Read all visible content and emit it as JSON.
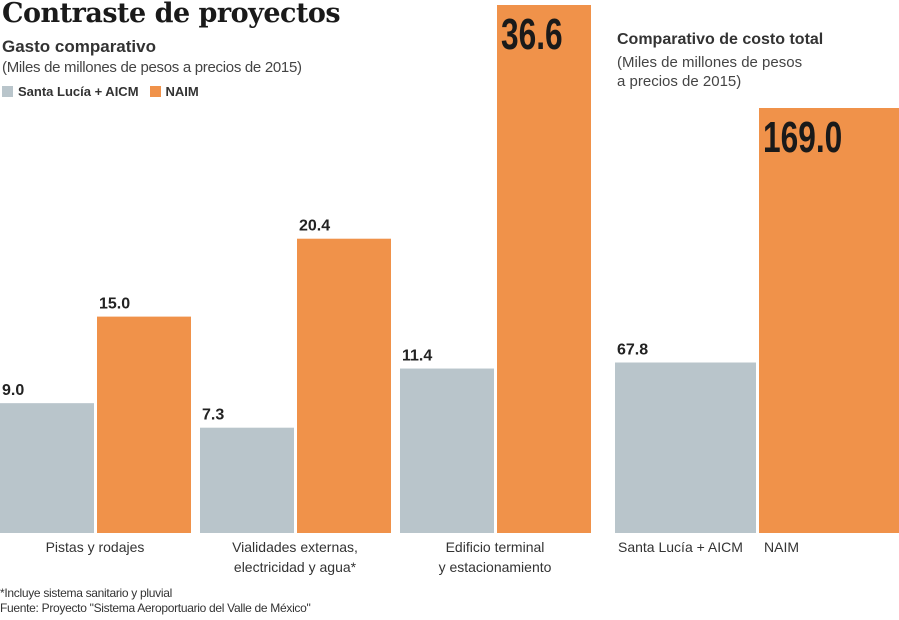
{
  "header": {
    "title": "Contraste de proyectos",
    "subtitle": "Gasto comparativo",
    "unit": "(Miles de millones de pesos a precios de 2015)"
  },
  "legend": [
    {
      "label": "Santa Lucía + AICM",
      "color": "#b9c5cb"
    },
    {
      "label": "NAIM",
      "color": "#f0924a"
    }
  ],
  "right_header": {
    "title": "Comparativo de costo total",
    "unit_line1": "(Miles de millones de pesos",
    "unit_line2": "a precios de 2015)"
  },
  "footer": {
    "note": "*Incluye sistema sanitario y pluvial",
    "source": "Fuente: Proyecto \"Sistema Aeroportuario del Valle de México\""
  },
  "chart_data": [
    {
      "type": "bar",
      "title": "Gasto comparativo",
      "categories": [
        [
          "Pistas y rodajes"
        ],
        [
          "Vialidades externas,",
          "electricidad y agua*"
        ],
        [
          "Edificio terminal",
          "y estacionamiento"
        ]
      ],
      "series": [
        {
          "name": "Santa Lucía + AICM",
          "color": "#b9c5cb",
          "values": [
            9.0,
            7.3,
            11.4
          ]
        },
        {
          "name": "NAIM",
          "color": "#f0924a",
          "values": [
            15.0,
            20.4,
            36.6
          ]
        }
      ],
      "ylim": [
        0,
        36.6
      ],
      "grid": false,
      "legend": "top-left"
    },
    {
      "type": "bar",
      "title": "Comparativo de costo total",
      "categories": [
        "Santa Lucía + AICM",
        "NAIM"
      ],
      "values": [
        67.8,
        169.0
      ],
      "colors": [
        "#b9c5cb",
        "#f0924a"
      ],
      "ylim": [
        0,
        169.0
      ],
      "grid": false
    }
  ]
}
